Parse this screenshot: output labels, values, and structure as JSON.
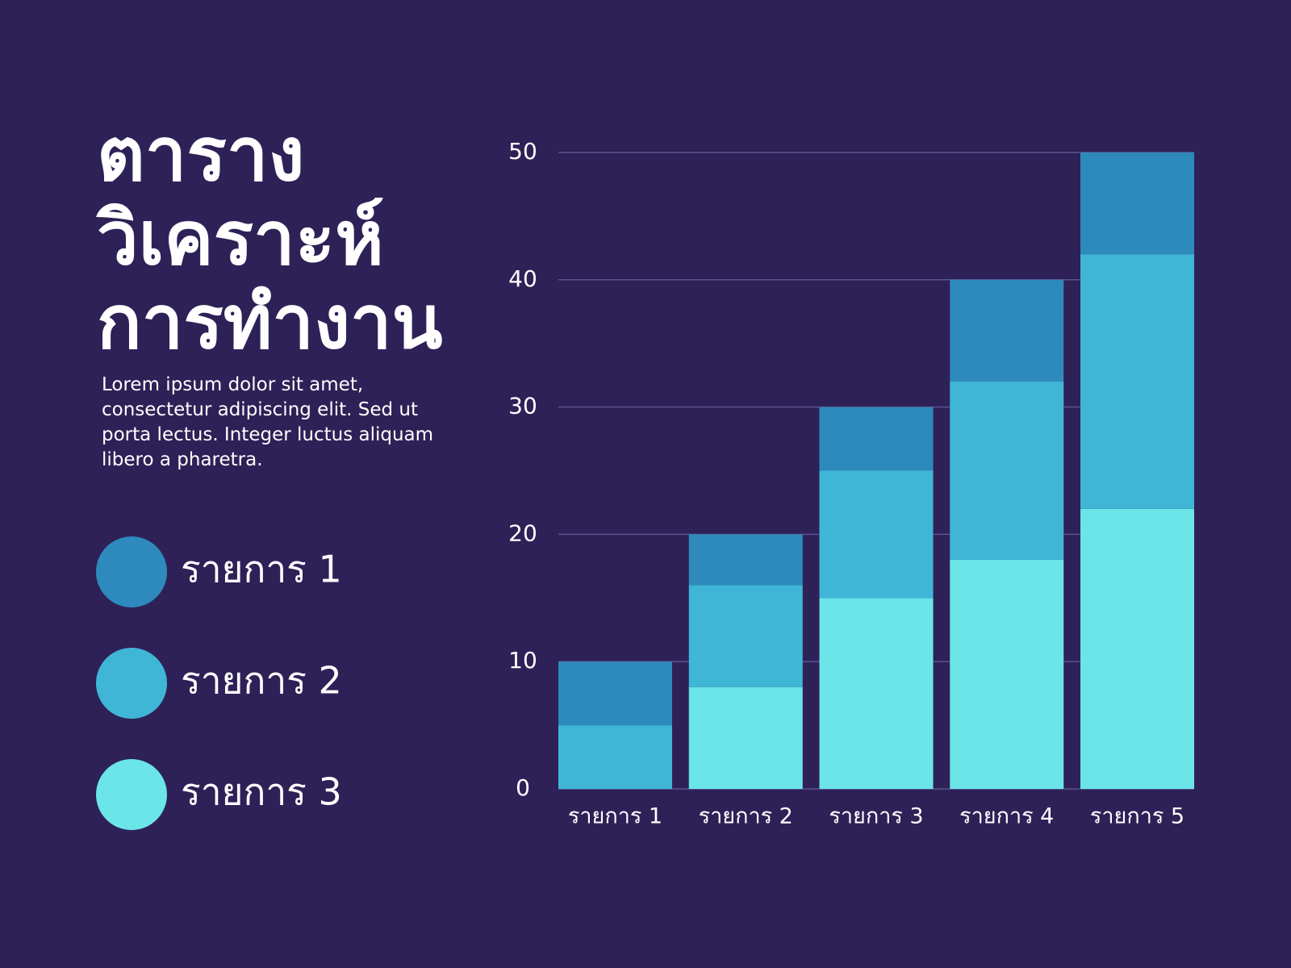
{
  "chart_data": {
    "type": "stacked_bar",
    "title": [
      "ตาราง",
      "วิเคราะห์",
      "การทำงาน"
    ],
    "subtitle": "Lorem ipsum dolor sit amet, consectetur adipiscing elit. Sed ut porta lectus. Integer luctus aliquam libero a pharetra.",
    "categories": [
      "รายการ 1",
      "รายการ 2",
      "รายการ 3",
      "รายการ 4",
      "รายการ 5"
    ],
    "series": [
      {
        "name": "รายการ 1",
        "color": "#2e8abc",
        "values": [
          5,
          4,
          5,
          8,
          8
        ]
      },
      {
        "name": "รายการ 2",
        "color": "#40b6d7",
        "values": [
          5,
          8,
          10,
          14,
          20
        ]
      },
      {
        "name": "รายการ 3",
        "color": "#6be5e8",
        "values": [
          0,
          8,
          15,
          18,
          22
        ]
      }
    ],
    "ylim": [
      0,
      50
    ],
    "yticks": [
      0,
      10,
      20,
      30,
      40,
      50
    ],
    "grid": true
  }
}
